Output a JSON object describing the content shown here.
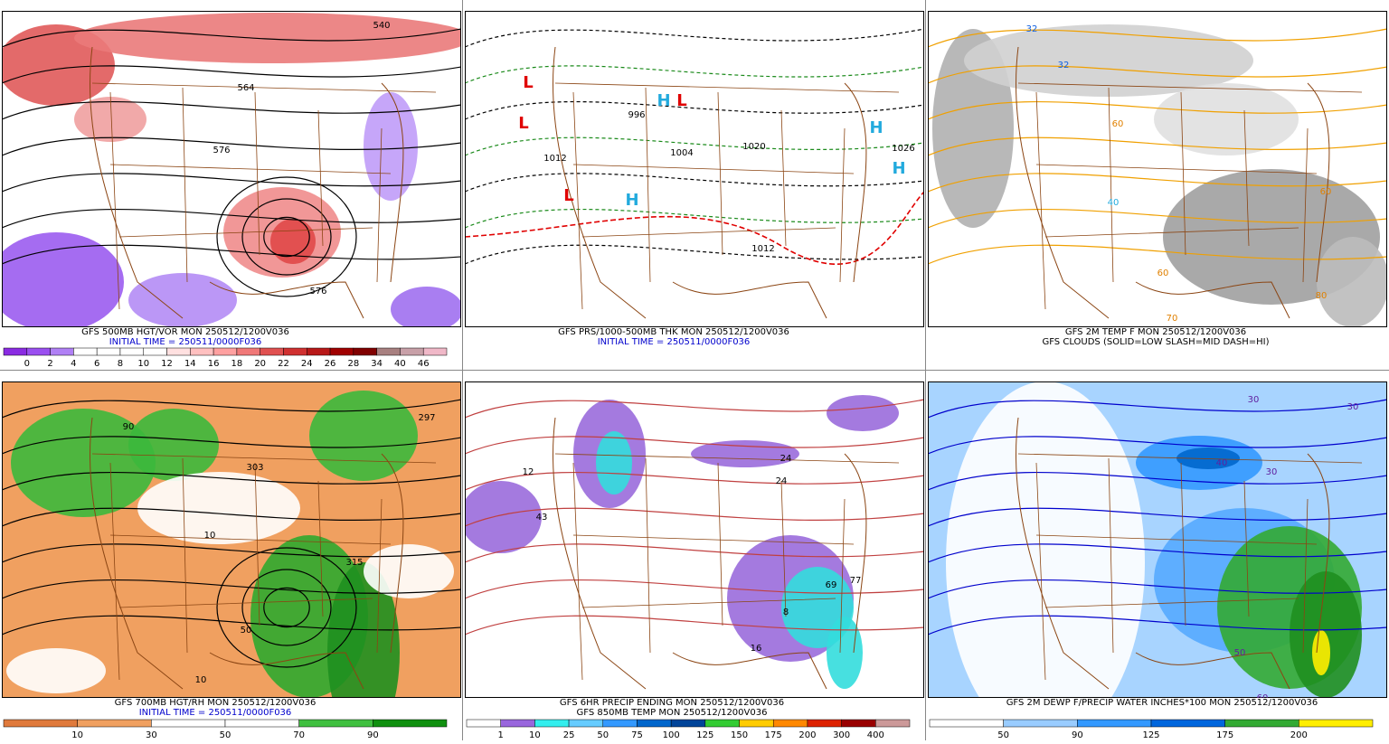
{
  "panels": [
    {
      "caption": "GFS 500MB HGT/VOR MON 250512/1200V036",
      "subcaption": "INITIAL TIME = 250511/0000F036",
      "colorbar_labels": [
        "0",
        "2",
        "4",
        "6",
        "8",
        "10",
        "12",
        "14",
        "16",
        "18",
        "20",
        "22",
        "24",
        "26",
        "28",
        "34",
        "40",
        "46"
      ],
      "map_labels": [
        "540",
        "564",
        "576",
        "576"
      ]
    },
    {
      "caption": "GFS PRS/1000-500MB THK MON 250512/1200V036",
      "subcaption": "INITIAL TIME = 250511/0000F036",
      "map_labels": [
        "L",
        "L",
        "L",
        "L",
        "H",
        "H",
        "H",
        "H",
        "996",
        "1004",
        "1012",
        "1020",
        "1026",
        "1012"
      ]
    },
    {
      "caption": "GFS 2M TEMP F MON 250512/1200V036",
      "subcaption": "GFS CLOUDS (SOLID=LOW SLASH=MID DASH=HI)",
      "map_labels": [
        "32",
        "32",
        "40",
        "60",
        "60",
        "60",
        "70",
        "80"
      ]
    },
    {
      "caption": "GFS 700MB HGT/RH MON 250512/1200V036",
      "subcaption": "INITIAL TIME = 250511/0000F036",
      "colorbar_labels": [
        "10",
        "30",
        "50",
        "70",
        "90"
      ],
      "map_labels": [
        "90",
        "297",
        "303",
        "315",
        "10",
        "50",
        "10"
      ]
    },
    {
      "caption": "GFS 6HR PRECIP ENDING MON 250512/1200V036",
      "subcaption": "GFS 850MB TEMP MON 250512/1200V036",
      "colorbar_labels": [
        "1",
        "10",
        "25",
        "50",
        "75",
        "100",
        "125",
        "150",
        "175",
        "200",
        "300",
        "400"
      ],
      "map_labels": [
        "12",
        "43",
        "24",
        "24",
        "8",
        "69",
        "77",
        "16"
      ]
    },
    {
      "caption": "GFS 2M DEWP F/PRECIP WATER INCHES*100 MON 250512/1200V036",
      "colorbar_labels": [
        "50",
        "90",
        "125",
        "175",
        "200"
      ],
      "map_labels": [
        "30",
        "30",
        "40",
        "30",
        "50",
        "60"
      ]
    }
  ]
}
